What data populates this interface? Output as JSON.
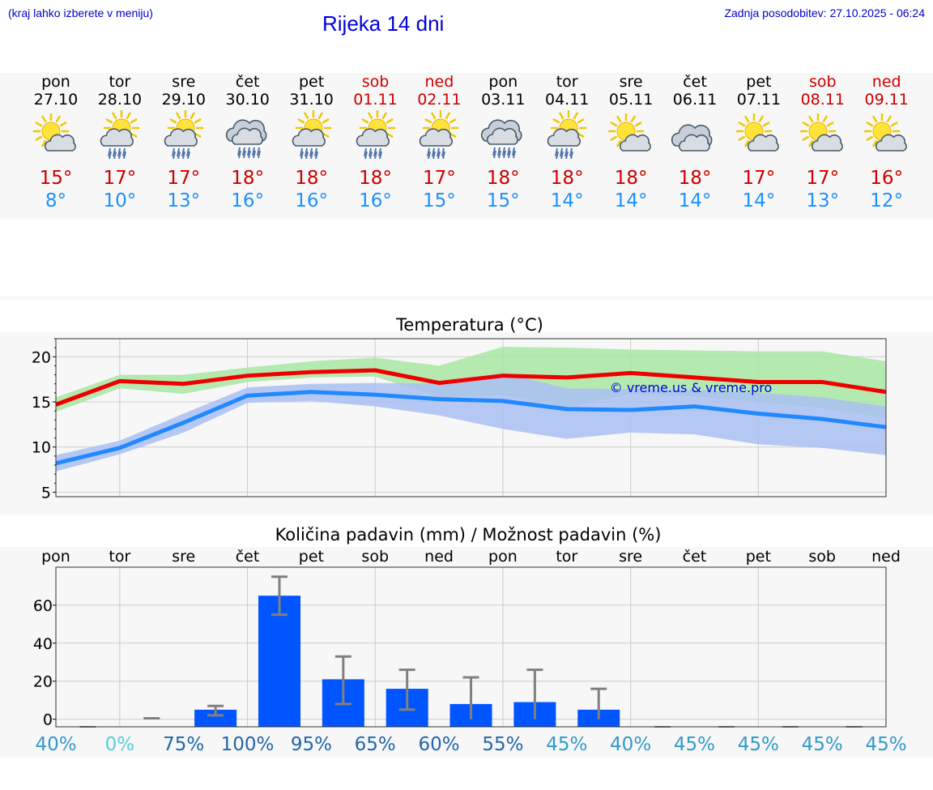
{
  "header": {
    "note": "(kraj lahko izberete v meniju)",
    "title": "Rijeka 14 dni",
    "updated": "Zadnja posodobitev: 27.10.2025 - 06:24"
  },
  "days": [
    {
      "name": "pon",
      "date": "27.10",
      "weekend": false,
      "icon": "sun-cloud-icon",
      "tmax": "15°",
      "tmin": "8°"
    },
    {
      "name": "tor",
      "date": "28.10",
      "weekend": false,
      "icon": "sun-cloud-rain-icon",
      "tmax": "17°",
      "tmin": "10°"
    },
    {
      "name": "sre",
      "date": "29.10",
      "weekend": false,
      "icon": "sun-cloud-rain-icon",
      "tmax": "17°",
      "tmin": "13°"
    },
    {
      "name": "čet",
      "date": "30.10",
      "weekend": false,
      "icon": "cloud-rain-icon",
      "tmax": "18°",
      "tmin": "16°"
    },
    {
      "name": "pet",
      "date": "31.10",
      "weekend": false,
      "icon": "sun-cloud-rain-icon",
      "tmax": "18°",
      "tmin": "16°"
    },
    {
      "name": "sob",
      "date": "01.11",
      "weekend": true,
      "icon": "sun-cloud-rain-icon",
      "tmax": "18°",
      "tmin": "16°"
    },
    {
      "name": "ned",
      "date": "02.11",
      "weekend": true,
      "icon": "sun-cloud-rain-icon",
      "tmax": "17°",
      "tmin": "15°"
    },
    {
      "name": "pon",
      "date": "03.11",
      "weekend": false,
      "icon": "cloud-rain-icon",
      "tmax": "18°",
      "tmin": "15°"
    },
    {
      "name": "tor",
      "date": "04.11",
      "weekend": false,
      "icon": "sun-cloud-rain-icon",
      "tmax": "18°",
      "tmin": "14°"
    },
    {
      "name": "sre",
      "date": "05.11",
      "weekend": false,
      "icon": "sun-cloud-icon",
      "tmax": "18°",
      "tmin": "14°"
    },
    {
      "name": "čet",
      "date": "06.11",
      "weekend": false,
      "icon": "cloud-icon",
      "tmax": "18°",
      "tmin": "14°"
    },
    {
      "name": "pet",
      "date": "07.11",
      "weekend": false,
      "icon": "sun-cloud-icon",
      "tmax": "17°",
      "tmin": "14°"
    },
    {
      "name": "sob",
      "date": "08.11",
      "weekend": true,
      "icon": "sun-cloud-icon",
      "tmax": "17°",
      "tmin": "13°"
    },
    {
      "name": "ned",
      "date": "09.11",
      "weekend": true,
      "icon": "sun-cloud-icon",
      "tmax": "16°",
      "tmin": "12°"
    }
  ],
  "colors": {
    "max": "#ee0000",
    "min": "#2288ff",
    "max_band": "#a8e6a3",
    "min_band": "#a9c0f3",
    "bar": "#0055ff",
    "error": "#808080"
  },
  "chart_data": [
    {
      "type": "line",
      "title": "Temperatura (°C)",
      "watermark": "© vreme.us & vreme.pro",
      "ylim": [
        4.5,
        22
      ],
      "yticks": [
        5,
        10,
        15,
        20
      ],
      "grid": true,
      "x": [
        0,
        1,
        2,
        3,
        4,
        5,
        6,
        7,
        8,
        9,
        10,
        11,
        12,
        13
      ],
      "series": [
        {
          "role": "max",
          "values": [
            14.7,
            17.3,
            17.0,
            17.9,
            18.3,
            18.5,
            17.1,
            17.9,
            17.7,
            18.2,
            17.7,
            17.2,
            17.2,
            16.1
          ],
          "band_low": [
            13.9,
            16.5,
            15.9,
            17.2,
            17.7,
            17.8,
            15.5,
            15.8,
            14.4,
            15.9,
            15.6,
            15.0,
            14.3,
            13.2
          ],
          "band_high": [
            15.5,
            18.0,
            18.0,
            18.8,
            19.5,
            19.9,
            19.0,
            21.1,
            21.0,
            20.8,
            20.7,
            20.6,
            20.6,
            19.5
          ]
        },
        {
          "role": "min",
          "values": [
            8.2,
            9.9,
            12.7,
            15.7,
            16.1,
            15.8,
            15.3,
            15.1,
            14.2,
            14.1,
            14.5,
            13.7,
            13.1,
            12.2
          ],
          "band_low": [
            7.3,
            9.2,
            11.6,
            14.9,
            15.1,
            14.5,
            13.5,
            12.0,
            10.9,
            11.6,
            11.4,
            10.3,
            9.9,
            9.1
          ],
          "band_high": [
            9.1,
            10.7,
            13.7,
            16.6,
            17.0,
            17.1,
            17.0,
            18.2,
            16.5,
            16.4,
            16.3,
            16.0,
            15.5,
            14.5
          ]
        }
      ]
    },
    {
      "type": "bar",
      "title": "Količina padavin (mm) / Možnost padavin (%)",
      "categories": [
        "pon",
        "tor",
        "sre",
        "čet",
        "pet",
        "sob",
        "ned",
        "pon",
        "tor",
        "sre",
        "čet",
        "pet",
        "sob",
        "ned"
      ],
      "values": [
        0,
        0,
        5,
        65,
        21,
        16,
        8,
        9,
        5,
        0,
        0,
        0,
        0,
        0
      ],
      "error_low": [
        0,
        0,
        2,
        55,
        8,
        5,
        0,
        0,
        0,
        0,
        0,
        0,
        0,
        0
      ],
      "error_high": [
        0,
        0.5,
        7,
        75,
        33,
        26,
        22,
        26,
        16,
        0,
        0,
        0,
        0,
        0
      ],
      "ylim": [
        -4,
        80
      ],
      "yticks": [
        0,
        20,
        40,
        60
      ],
      "grid": true,
      "chance": [
        "40%",
        "0%",
        "75%",
        "100%",
        "95%",
        "65%",
        "60%",
        "55%",
        "45%",
        "40%",
        "45%",
        "45%",
        "45%",
        "45%"
      ],
      "chance_colors": [
        "#3399cc",
        "#55ccdd",
        "#2266aa",
        "#2266aa",
        "#2266aa",
        "#2266aa",
        "#2266aa",
        "#2266aa",
        "#3399cc",
        "#3399cc",
        "#3399cc",
        "#3399cc",
        "#3399cc",
        "#3399cc"
      ]
    }
  ]
}
